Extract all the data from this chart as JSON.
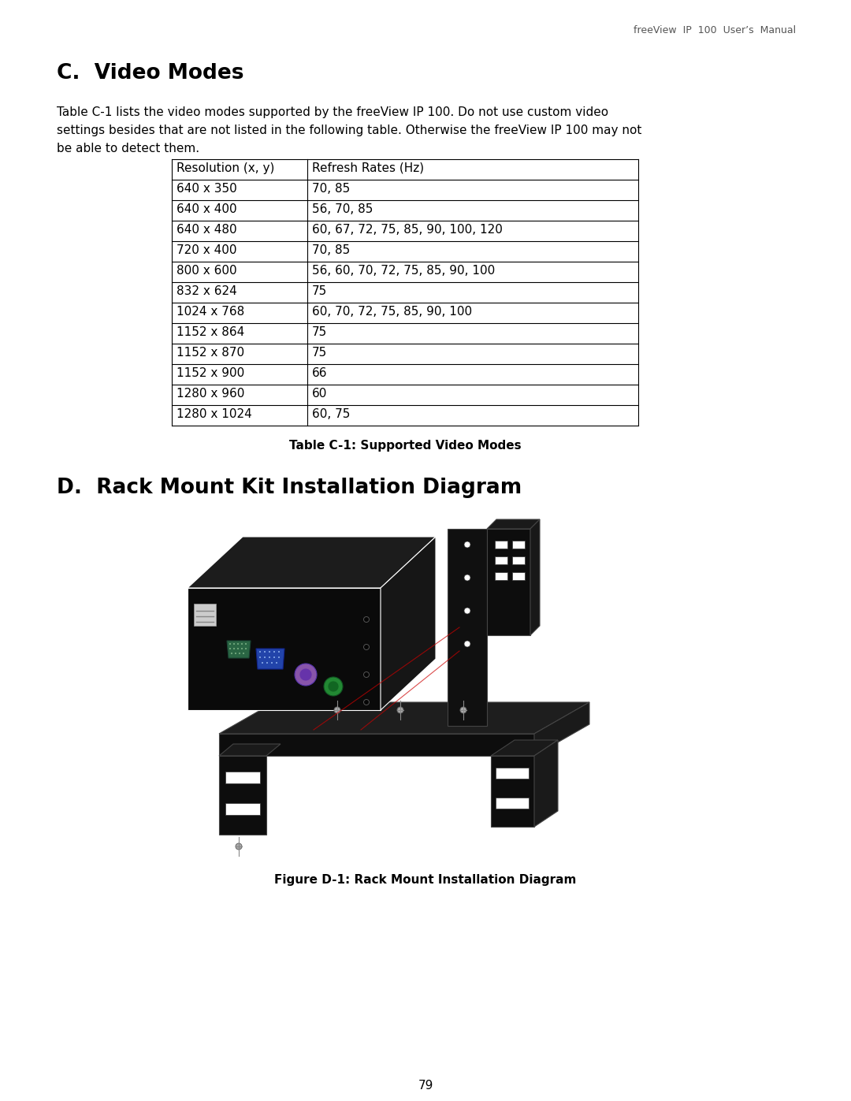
{
  "header_text": "freeView  IP  100  User’s  Manual",
  "section_c_title": "C.  Video Modes",
  "section_c_body_line1": "Table C-1 lists the video modes supported by the freeView IP 100. Do not use custom video",
  "section_c_body_line2": "settings besides that are not listed in the following table. Otherwise the freeView IP 100 may not",
  "section_c_body_line3": "be able to detect them.",
  "table_caption": "Table C-1: Supported Video Modes",
  "table_headers": [
    "Resolution (x, y)",
    "Refresh Rates (Hz)"
  ],
  "table_rows": [
    [
      "640 x 350",
      "70, 85"
    ],
    [
      "640 x 400",
      "56, 70, 85"
    ],
    [
      "640 x 480",
      "60, 67, 72, 75, 85, 90, 100, 120"
    ],
    [
      "720 x 400",
      "70, 85"
    ],
    [
      "800 x 600",
      "56, 60, 70, 72, 75, 85, 90, 100"
    ],
    [
      "832 x 624",
      "75"
    ],
    [
      "1024 x 768",
      "60, 70, 72, 75, 85, 90, 100"
    ],
    [
      "1152 x 864",
      "75"
    ],
    [
      "1152 x 870",
      "75"
    ],
    [
      "1152 x 900",
      "66"
    ],
    [
      "1280 x 960",
      "60"
    ],
    [
      "1280 x 1024",
      "60, 75"
    ]
  ],
  "section_d_title": "D.  Rack Mount Kit Installation Diagram",
  "figure_caption": "Figure D-1: Rack Mount Installation Diagram",
  "page_number": "79",
  "bg_color": "#ffffff",
  "text_color": "#000000",
  "header_color": "#555555"
}
